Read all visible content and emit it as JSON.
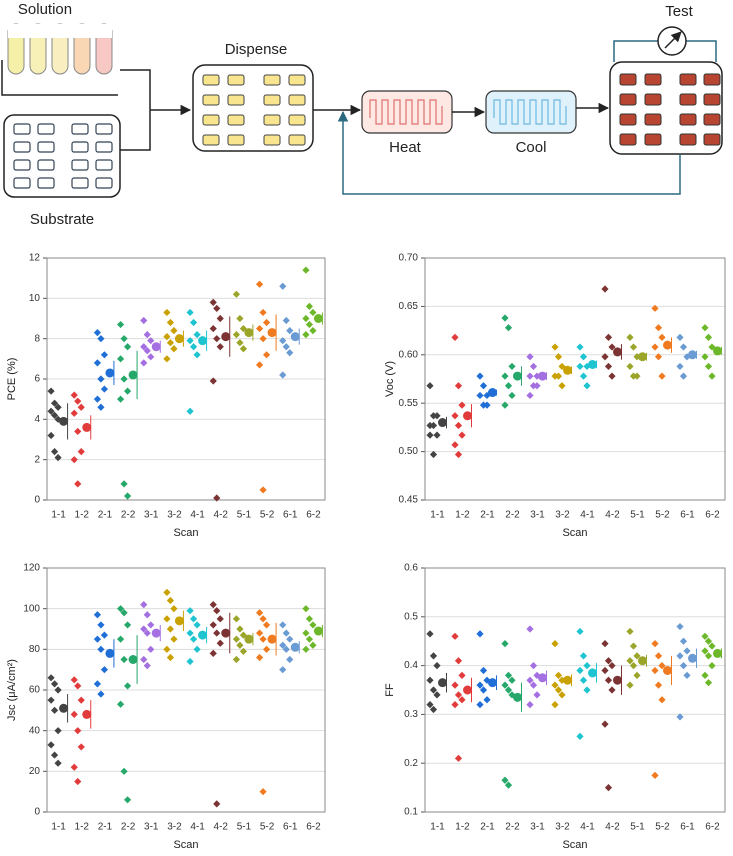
{
  "diagram": {
    "labels": {
      "solution": "Solution",
      "substrate": "Substrate",
      "dispense": "Dispense",
      "heat": "Heat",
      "cool": "Cool",
      "test": "Test"
    }
  },
  "chart_data": [
    {
      "type": "dotplot",
      "ylabel": "PCE (%)",
      "xlabel": "Scan",
      "categories": [
        "1-1",
        "1-2",
        "2-1",
        "2-2",
        "3-1",
        "3-2",
        "4-1",
        "4-2",
        "5-1",
        "5-2",
        "6-1",
        "6-2"
      ],
      "colors": [
        "#444444",
        "#e23b3b",
        "#1f6fd6",
        "#27a86b",
        "#a46fe0",
        "#c9a100",
        "#1ec4d0",
        "#7b3333",
        "#9aa52a",
        "#f07a20",
        "#6a9bd3",
        "#6cb82a"
      ],
      "ylim": [
        0,
        12
      ],
      "yticks": [
        0,
        2,
        4,
        6,
        8,
        10,
        12
      ],
      "grid": true,
      "groups": [
        {
          "values": [
            5.4,
            4.8,
            4.6,
            4.4,
            4.2,
            4.0,
            3.2,
            2.4,
            2.1
          ],
          "mean": 3.9,
          "error": 0.9
        },
        {
          "values": [
            5.2,
            4.9,
            4.6,
            4.3,
            3.4,
            2.4,
            2.0,
            0.8
          ],
          "mean": 3.6,
          "error": 0.6
        },
        {
          "values": [
            8.3,
            8.0,
            7.2,
            6.8,
            6.0,
            5.5,
            5.0,
            4.6
          ],
          "mean": 6.3,
          "error": 0.6
        },
        {
          "values": [
            8.7,
            8.0,
            7.6,
            7.0,
            6.0,
            5.4,
            5.0,
            0.8,
            0.2
          ],
          "mean": 6.2,
          "error": 1.2
        },
        {
          "values": [
            8.9,
            8.2,
            7.9,
            7.6,
            7.4,
            7.1,
            6.8
          ],
          "mean": 7.6,
          "error": 0.3
        },
        {
          "values": [
            9.3,
            8.8,
            8.4,
            8.1,
            7.8,
            7.5,
            7.0
          ],
          "mean": 8.0,
          "error": 0.4
        },
        {
          "values": [
            9.3,
            8.8,
            8.2,
            7.9,
            7.6,
            7.2,
            4.4
          ],
          "mean": 7.9,
          "error": 0.5
        },
        {
          "values": [
            9.8,
            9.5,
            9.0,
            8.5,
            8.0,
            7.6,
            5.9,
            0.1
          ],
          "mean": 8.1,
          "error": 1.0
        },
        {
          "values": [
            10.2,
            9.0,
            8.5,
            8.2,
            7.8,
            7.5
          ],
          "mean": 8.3,
          "error": 0.4
        },
        {
          "values": [
            10.7,
            9.3,
            8.8,
            8.5,
            8.0,
            7.2,
            6.7,
            0.5
          ],
          "mean": 8.3,
          "error": 0.9
        },
        {
          "values": [
            10.6,
            8.9,
            8.4,
            7.9,
            7.6,
            7.3,
            6.2
          ],
          "mean": 8.1,
          "error": 0.4
        },
        {
          "values": [
            11.4,
            9.6,
            9.3,
            9.0,
            8.7,
            8.4,
            8.2
          ],
          "mean": 9.0,
          "error": 0.3
        }
      ]
    },
    {
      "type": "dotplot",
      "ylabel": "Voc (V)",
      "xlabel": "Scan",
      "categories": [
        "1-1",
        "1-2",
        "2-1",
        "2-2",
        "3-1",
        "3-2",
        "4-1",
        "4-2",
        "5-1",
        "5-2",
        "6-1",
        "6-2"
      ],
      "colors": [
        "#444444",
        "#e23b3b",
        "#1f6fd6",
        "#27a86b",
        "#a46fe0",
        "#c9a100",
        "#1ec4d0",
        "#7b3333",
        "#9aa52a",
        "#f07a20",
        "#6a9bd3",
        "#6cb82a"
      ],
      "ylim": [
        0.45,
        0.7
      ],
      "yticks": [
        0.45,
        {
          "value": 0.5,
          "label": "0.50"
        },
        0.55,
        {
          "value": 0.6,
          "label": "0.60"
        },
        0.65,
        {
          "value": 0.7,
          "label": "0.70"
        }
      ],
      "grid": true,
      "groups": [
        {
          "values": [
            0.568,
            0.537,
            0.537,
            0.527,
            0.527,
            0.517,
            0.517,
            0.497
          ],
          "mean": 0.53,
          "error": 0.006
        },
        {
          "values": [
            0.618,
            0.568,
            0.548,
            0.537,
            0.527,
            0.517,
            0.507,
            0.497
          ],
          "mean": 0.537,
          "error": 0.012
        },
        {
          "values": [
            0.578,
            0.568,
            0.558,
            0.558,
            0.548,
            0.548
          ],
          "mean": 0.561,
          "error": 0.003
        },
        {
          "values": [
            0.638,
            0.628,
            0.588,
            0.578,
            0.568,
            0.558,
            0.548
          ],
          "mean": 0.578,
          "error": 0.01
        },
        {
          "values": [
            0.598,
            0.588,
            0.578,
            0.578,
            0.568,
            0.568,
            0.558
          ],
          "mean": 0.578,
          "error": 0.004
        },
        {
          "values": [
            0.608,
            0.598,
            0.588,
            0.578,
            0.578,
            0.568
          ],
          "mean": 0.584,
          "error": 0.004
        },
        {
          "values": [
            0.608,
            0.598,
            0.588,
            0.588,
            0.578,
            0.568
          ],
          "mean": 0.59,
          "error": 0.004
        },
        {
          "values": [
            0.668,
            0.618,
            0.608,
            0.598,
            0.588,
            0.578
          ],
          "mean": 0.603,
          "error": 0.008
        },
        {
          "values": [
            0.618,
            0.608,
            0.598,
            0.588,
            0.578,
            0.578
          ],
          "mean": 0.598,
          "error": 0.004
        },
        {
          "values": [
            0.648,
            0.628,
            0.618,
            0.608,
            0.598,
            0.578
          ],
          "mean": 0.61,
          "error": 0.008
        },
        {
          "values": [
            0.618,
            0.608,
            0.598,
            0.588,
            0.578
          ],
          "mean": 0.6,
          "error": 0.004
        },
        {
          "values": [
            0.628,
            0.618,
            0.608,
            0.598,
            0.588,
            0.578
          ],
          "mean": 0.604,
          "error": 0.004
        }
      ]
    },
    {
      "type": "dotplot",
      "ylabel": "Jsc (μA/cm²)",
      "xlabel": "Scan",
      "categories": [
        "1-1",
        "1-2",
        "2-1",
        "2-2",
        "3-1",
        "3-2",
        "4-1",
        "4-2",
        "5-1",
        "5-2",
        "6-1",
        "6-2"
      ],
      "colors": [
        "#444444",
        "#e23b3b",
        "#1f6fd6",
        "#27a86b",
        "#a46fe0",
        "#c9a100",
        "#1ec4d0",
        "#7b3333",
        "#9aa52a",
        "#f07a20",
        "#6a9bd3",
        "#6cb82a"
      ],
      "ylim": [
        0,
        120
      ],
      "yticks": [
        0,
        20,
        40,
        60,
        80,
        100,
        120
      ],
      "grid": true,
      "groups": [
        {
          "values": [
            66,
            63,
            60,
            55,
            50,
            40,
            33,
            28,
            24
          ],
          "mean": 51,
          "error": 7
        },
        {
          "values": [
            65,
            62,
            55,
            48,
            40,
            32,
            22,
            15
          ],
          "mean": 48,
          "error": 7
        },
        {
          "values": [
            97,
            92,
            87,
            85,
            80,
            70,
            63,
            58
          ],
          "mean": 78,
          "error": 7
        },
        {
          "values": [
            100,
            98,
            92,
            85,
            75,
            62,
            53,
            20,
            6
          ],
          "mean": 75,
          "error": 12
        },
        {
          "values": [
            102,
            97,
            92,
            90,
            88,
            80,
            75,
            72
          ],
          "mean": 88,
          "error": 4
        },
        {
          "values": [
            108,
            104,
            100,
            95,
            90,
            85,
            80,
            76
          ],
          "mean": 94,
          "error": 5
        },
        {
          "values": [
            99,
            95,
            92,
            88,
            85,
            80,
            74
          ],
          "mean": 87,
          "error": 4
        },
        {
          "values": [
            102,
            99,
            95,
            92,
            88,
            83,
            78,
            4
          ],
          "mean": 88,
          "error": 10
        },
        {
          "values": [
            95,
            90,
            87,
            85,
            82,
            79,
            75
          ],
          "mean": 85,
          "error": 3
        },
        {
          "values": [
            98,
            95,
            92,
            88,
            85,
            80,
            76,
            10
          ],
          "mean": 85,
          "error": 8
        },
        {
          "values": [
            92,
            88,
            85,
            82,
            80,
            75,
            70
          ],
          "mean": 81,
          "error": 3
        },
        {
          "values": [
            100,
            95,
            92,
            88,
            85,
            82,
            80
          ],
          "mean": 89,
          "error": 3
        }
      ]
    },
    {
      "type": "dotplot",
      "ylabel": "FF",
      "xlabel": "Scan",
      "categories": [
        "1-1",
        "1-2",
        "2-1",
        "2-2",
        "3-1",
        "3-2",
        "4-1",
        "4-2",
        "5-1",
        "5-2",
        "6-1",
        "6-2"
      ],
      "colors": [
        "#444444",
        "#e23b3b",
        "#1f6fd6",
        "#27a86b",
        "#a46fe0",
        "#c9a100",
        "#1ec4d0",
        "#7b3333",
        "#9aa52a",
        "#f07a20",
        "#6a9bd3",
        "#6cb82a"
      ],
      "ylim": [
        0.1,
        0.6
      ],
      "yticks": [
        0.1,
        0.2,
        0.3,
        0.4,
        0.5,
        0.6
      ],
      "grid": true,
      "groups": [
        {
          "values": [
            0.465,
            0.42,
            0.4,
            0.37,
            0.35,
            0.34,
            0.32,
            0.31
          ],
          "mean": 0.365,
          "error": 0.02
        },
        {
          "values": [
            0.46,
            0.41,
            0.38,
            0.36,
            0.34,
            0.33,
            0.32,
            0.21
          ],
          "mean": 0.35,
          "error": 0.025
        },
        {
          "values": [
            0.465,
            0.39,
            0.37,
            0.36,
            0.35,
            0.33,
            0.32
          ],
          "mean": 0.365,
          "error": 0.015
        },
        {
          "values": [
            0.445,
            0.38,
            0.37,
            0.36,
            0.35,
            0.34,
            0.165,
            0.155
          ],
          "mean": 0.335,
          "error": 0.03
        },
        {
          "values": [
            0.475,
            0.4,
            0.38,
            0.37,
            0.36,
            0.34,
            0.32
          ],
          "mean": 0.375,
          "error": 0.015
        },
        {
          "values": [
            0.445,
            0.38,
            0.37,
            0.36,
            0.35,
            0.34,
            0.32
          ],
          "mean": 0.37,
          "error": 0.012
        },
        {
          "values": [
            0.47,
            0.42,
            0.4,
            0.39,
            0.37,
            0.35,
            0.255
          ],
          "mean": 0.385,
          "error": 0.02
        },
        {
          "values": [
            0.445,
            0.41,
            0.4,
            0.39,
            0.37,
            0.35,
            0.28,
            0.15
          ],
          "mean": 0.37,
          "error": 0.03
        },
        {
          "values": [
            0.47,
            0.44,
            0.42,
            0.41,
            0.4,
            0.38,
            0.36
          ],
          "mean": 0.41,
          "error": 0.012
        },
        {
          "values": [
            0.445,
            0.42,
            0.4,
            0.39,
            0.36,
            0.33,
            0.175
          ],
          "mean": 0.39,
          "error": 0.03
        },
        {
          "values": [
            0.48,
            0.45,
            0.43,
            0.42,
            0.4,
            0.38,
            0.295
          ],
          "mean": 0.415,
          "error": 0.02
        },
        {
          "values": [
            0.46,
            0.45,
            0.44,
            0.43,
            0.42,
            0.4,
            0.38,
            0.365
          ],
          "mean": 0.425,
          "error": 0.01
        }
      ]
    }
  ]
}
